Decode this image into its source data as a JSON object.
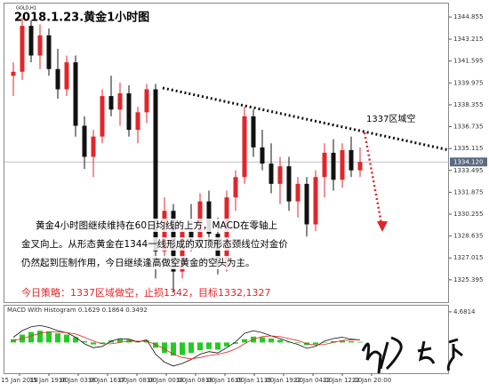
{
  "chart_data": [
    {
      "type": "candlestick",
      "title": "2018.1.23.黄金1小时图",
      "symbol": "GOLD,H1",
      "ylim": [
        1323.74,
        1345.85
      ],
      "yticks": [
        1344.855,
        1343.215,
        1341.595,
        1339.975,
        1338.355,
        1336.735,
        1335.115,
        1333.495,
        1331.875,
        1330.255,
        1328.635,
        1327.015,
        1325.395
      ],
      "current_price": {
        "value": 1334.12,
        "label": "1334.120"
      },
      "up_color": "#e0262a",
      "down_color": "#111111",
      "open": [
        1340.5,
        1340.8,
        1344.2,
        1342,
        1343.5,
        1341,
        1339.5,
        1341.5,
        1336.8,
        1334.5,
        1336,
        1339,
        1338,
        1339.2,
        1336.5,
        1337.8,
        1339.5,
        1327.5,
        1330.5,
        1326,
        1329,
        1328.2,
        1331.2,
        1328.8,
        1326.5,
        1331.5,
        1333,
        1337.5,
        1335.2,
        1334,
        1332.5,
        1333.8,
        1331.2,
        1332.5,
        1329.5,
        1333,
        1334.8,
        1332.8,
        1335,
        1333.5
      ],
      "high": [
        1341.5,
        1344.8,
        1344.6,
        1344.3,
        1344,
        1342.5,
        1342,
        1342,
        1337.5,
        1336.5,
        1339.5,
        1340.5,
        1340,
        1339.8,
        1338.2,
        1339.9,
        1339.9,
        1331.5,
        1331,
        1329.5,
        1331,
        1331.8,
        1332,
        1330,
        1332,
        1333.5,
        1338.2,
        1338,
        1336.5,
        1335.5,
        1334.5,
        1334.5,
        1333,
        1333,
        1333.5,
        1335.5,
        1335.8,
        1335.5,
        1336,
        1335.2
      ],
      "low": [
        1339,
        1340.2,
        1341.5,
        1341,
        1340.5,
        1338.8,
        1339,
        1336,
        1333.6,
        1333,
        1335.5,
        1337.5,
        1336.8,
        1336,
        1335.5,
        1337,
        1325.5,
        1326.5,
        1324.5,
        1325.5,
        1327.5,
        1327.8,
        1328,
        1325.8,
        1326,
        1330.5,
        1332.5,
        1334.5,
        1333.5,
        1331.8,
        1331,
        1330.5,
        1330,
        1328.6,
        1329,
        1331.5,
        1332,
        1332.2,
        1333,
        1333
      ],
      "close": [
        1340.8,
        1344.2,
        1342,
        1343.5,
        1341,
        1339.5,
        1341.5,
        1336.8,
        1334.5,
        1336,
        1339,
        1338,
        1339.2,
        1336.5,
        1337.8,
        1339.5,
        1327.5,
        1330.5,
        1326,
        1329,
        1328.2,
        1331.2,
        1328.8,
        1326.5,
        1331.5,
        1333,
        1337.5,
        1335.2,
        1334,
        1332.5,
        1333.8,
        1331.2,
        1332.5,
        1329.5,
        1333,
        1334.8,
        1332.8,
        1335,
        1333.5,
        1334.12
      ],
      "x_labels": [
        "15 Jan 2018",
        "15 Jan 19:00",
        "16 Jan 03:00",
        "16 Jan 16:00",
        "17 Jan 08:00",
        "18 Jan 00:00",
        "18 Jan 08:00",
        "18 Jan 16:00",
        "19 Jan 11:00",
        "19 Jan 19:00",
        "22 Jan 04:00",
        "22 Jan 12:00",
        "22 Jan 20:00"
      ],
      "trendline": {
        "x": [
          16.8,
          49
        ],
        "y": [
          1339.6,
          1335.0
        ],
        "color": "#111111"
      },
      "arrow": {
        "x": [
          39.5,
          41.5
        ],
        "y": [
          1336.3,
          1329.2
        ],
        "color": "#e0262a"
      },
      "annotation": "1337区域空",
      "commentary": [
        "黄金4小时图继续维持在60日均线的上方，MACD在零轴上",
        "金叉向上。从形态黄金在1344一线形成的双顶形态颈线位对金价",
        "仍然起到压制作用，今日继续逢高做空黄金的空头为主。"
      ],
      "strategy": "今日策略：1337区域做空，止损1342，目标1332,1327"
    },
    {
      "type": "macd",
      "title": "MACD With Histogram 0.1629 0.1864 0.3492",
      "ylim": [
        -4.7,
        5.62
      ],
      "yticks": [
        4.6814
      ],
      "histogram": {
        "color": "#22cc22",
        "values": [
          0.5,
          1.2,
          1.6,
          1.8,
          1.7,
          1.4,
          1.2,
          0.8,
          0.2,
          -0.3,
          -0.2,
          0.3,
          0.5,
          0.4,
          0.2,
          0.3,
          -0.8,
          -1.6,
          -2.0,
          -1.9,
          -1.6,
          -1.2,
          -1.0,
          -1.1,
          -0.6,
          -0.2,
          0.5,
          0.9,
          0.8,
          0.6,
          0.4,
          0.1,
          -0.1,
          -0.4,
          -0.3,
          0,
          0.2,
          0.3,
          0.2,
          0.1
        ]
      },
      "series": [
        {
          "color": "#111111",
          "values": [
            0.8,
            1.8,
            2.4,
            2.6,
            2.3,
            1.8,
            1.5,
            0.8,
            -0.2,
            -0.8,
            -0.6,
            0.2,
            0.6,
            0.5,
            0.1,
            0.4,
            -1.8,
            -3.0,
            -3.6,
            -3.2,
            -2.6,
            -1.8,
            -1.4,
            -1.6,
            -0.8,
            0.1,
            1.4,
            1.8,
            1.5,
            1.0,
            0.6,
            0.1,
            -0.3,
            -0.9,
            -0.6,
            0.2,
            0.6,
            0.8,
            0.5,
            0.4
          ]
        },
        {
          "color": "#e0262a",
          "values": [
            0.3,
            0.6,
            1.0,
            1.4,
            1.6,
            1.6,
            1.5,
            1.3,
            0.8,
            0.2,
            -0.2,
            -0.2,
            0,
            0.2,
            0.2,
            0.2,
            -0.3,
            -1.0,
            -1.8,
            -2.3,
            -2.5,
            -2.3,
            -2.0,
            -1.8,
            -1.5,
            -1.0,
            -0.2,
            0.5,
            0.9,
            1.0,
            0.9,
            0.6,
            0.3,
            -0.2,
            -0.4,
            -0.3,
            0,
            0.3,
            0.4,
            0.4
          ]
        }
      ]
    }
  ]
}
